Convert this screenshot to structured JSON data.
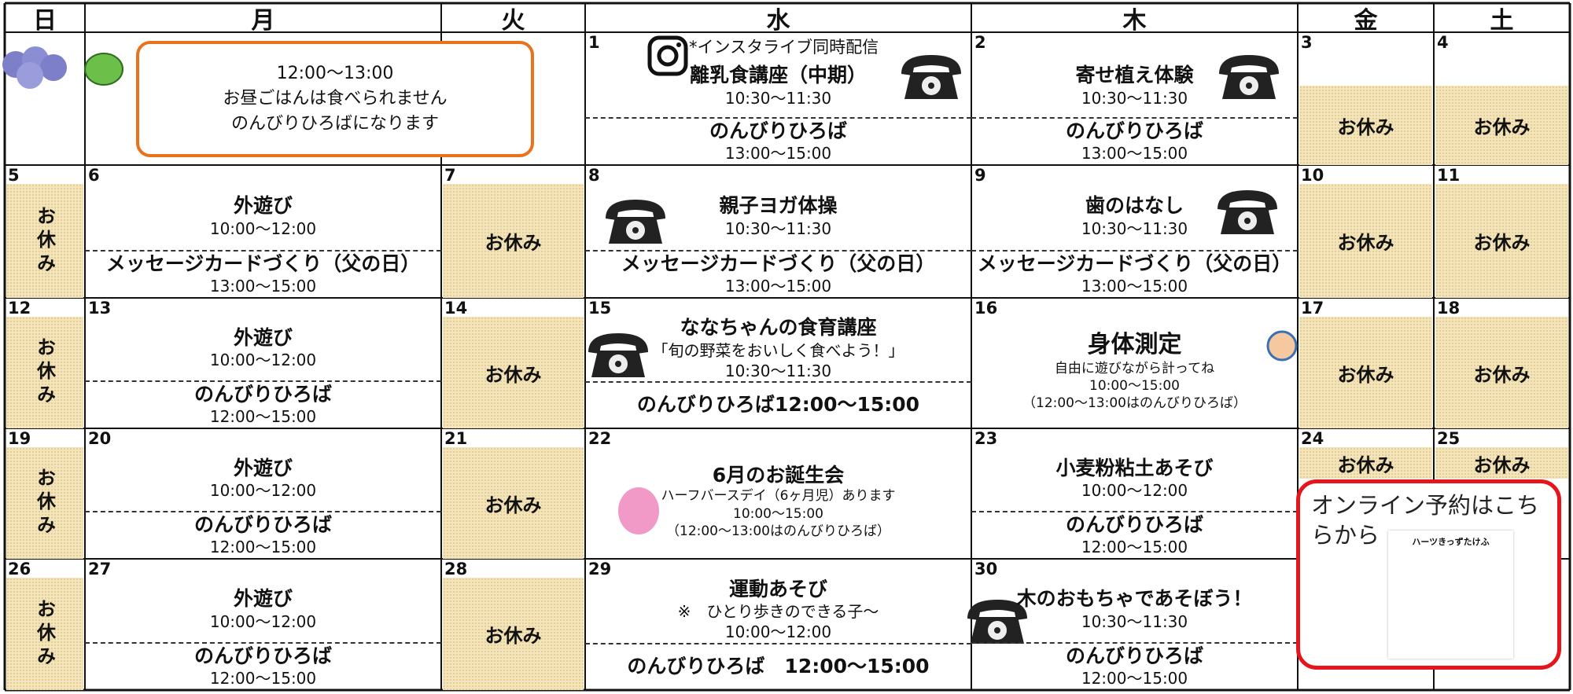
{
  "header": {
    "days": [
      "日",
      "月",
      "火",
      "水",
      "木",
      "金",
      "土"
    ]
  },
  "notice": [
    "12:00〜13:00",
    "お昼ごはんは食べられません",
    "のんびりひろばになります"
  ],
  "instagram_note": "*インスタライブ同時配信",
  "online": {
    "title": "オンライン予約はこちらから",
    "qr_label": "ハーツきっずたけふ"
  },
  "weeks": [
    [
      {},
      {},
      {},
      {
        "date": "1",
        "groups": [
          [
            "離乳食講座（中期）",
            "10:30〜11:30"
          ],
          [
            "のんびりひろば",
            "13:00〜15:00"
          ]
        ]
      },
      {
        "date": "2",
        "groups": [
          [
            "寄せ植え体験",
            "10:30〜11:30"
          ],
          [
            "のんびりひろば",
            "13:00〜15:00"
          ]
        ]
      },
      {
        "date": "3",
        "closed": "お休み"
      },
      {
        "date": "4",
        "closed": "お休み"
      }
    ],
    [
      {
        "date": "5",
        "closed": "お休み"
      },
      {
        "date": "6",
        "groups": [
          [
            "外遊び",
            "10:00〜12:00"
          ],
          [
            "メッセージカードづくり（父の日）",
            "13:00〜15:00"
          ]
        ]
      },
      {
        "date": "7",
        "closed": "お休み"
      },
      {
        "date": "8",
        "groups": [
          [
            "親子ヨガ体操",
            "10:30〜11:30"
          ],
          [
            "メッセージカードづくり（父の日）",
            "13:00〜15:00"
          ]
        ]
      },
      {
        "date": "9",
        "groups": [
          [
            "歯のはなし",
            "10:30〜11:30"
          ],
          [
            "メッセージカードづくり（父の日）",
            "13:00〜15:00"
          ]
        ]
      },
      {
        "date": "10",
        "closed": "お休み"
      },
      {
        "date": "11",
        "closed": "お休み"
      }
    ],
    [
      {
        "date": "12",
        "closed": "お休み"
      },
      {
        "date": "13",
        "groups": [
          [
            "外遊び",
            "10:00〜12:00"
          ],
          [
            "のんびりひろば",
            "12:00〜15:00"
          ]
        ]
      },
      {
        "date": "14",
        "closed": "お休み"
      },
      {
        "date": "15",
        "groups": [
          [
            "ななちゃんの食育講座",
            "「旬の野菜をおいしく食べよう！」",
            "10:30〜11:30"
          ],
          [
            "のんびりひろば12:00〜15:00"
          ]
        ]
      },
      {
        "date": "16",
        "groups": [
          [
            "身体測定",
            "自由に遊びながら計ってね",
            "10:00〜15:00",
            "（12:00〜13:00はのんびりひろば）"
          ]
        ]
      },
      {
        "date": "17",
        "closed": "お休み"
      },
      {
        "date": "18",
        "closed": "お休み"
      }
    ],
    [
      {
        "date": "19",
        "closed": "お休み"
      },
      {
        "date": "20",
        "groups": [
          [
            "外遊び",
            "10:00〜12:00"
          ],
          [
            "のんびりひろば",
            "12:00〜15:00"
          ]
        ]
      },
      {
        "date": "21",
        "closed": "お休み"
      },
      {
        "date": "22",
        "groups": [
          [
            "6月のお誕生会",
            "ハーフバースデイ（6ヶ月児）あります",
            "10:00〜15:00",
            "（12:00〜13:00はのんびりひろば）"
          ]
        ]
      },
      {
        "date": "23",
        "groups": [
          [
            "小麦粉粘土あそび",
            "10:00〜12:00"
          ],
          [
            "のんびりひろば",
            "12:00〜15:00"
          ]
        ]
      },
      {
        "date": "24",
        "closed": "お休み"
      },
      {
        "date": "25",
        "closed": "お休み"
      }
    ],
    [
      {
        "date": "26",
        "closed": "お休み"
      },
      {
        "date": "27",
        "groups": [
          [
            "外遊び",
            "10:00〜12:00"
          ],
          [
            "のんびりひろば",
            "12:00〜15:00"
          ]
        ]
      },
      {
        "date": "28",
        "closed": "お休み"
      },
      {
        "date": "29",
        "groups": [
          [
            "運動あそび",
            "※　ひとり歩きのできる子〜",
            "10:00〜12:00"
          ],
          [
            "のんびりひろば　12:00〜15:00"
          ]
        ]
      },
      {
        "date": "30",
        "groups": [
          [
            "木のおもちゃであそぼう！",
            "10:30〜11:30"
          ],
          [
            "のんびりひろば",
            "12:00〜15:00"
          ]
        ]
      },
      {},
      {}
    ]
  ]
}
